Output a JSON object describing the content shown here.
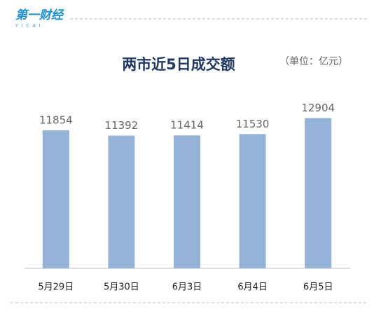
{
  "logo": {
    "name": "第一财经",
    "sub": "YICAI"
  },
  "chart_data": {
    "type": "bar",
    "title": "两市近5日成交额",
    "subtitle": "（单位：亿元）",
    "categories": [
      "5月29日",
      "5月30日",
      "6月3日",
      "6月4日",
      "6月5日"
    ],
    "values": [
      11854,
      11392,
      11414,
      11530,
      12904
    ],
    "color": "#95b3d7",
    "ylim": [
      0,
      16000
    ],
    "grid": false
  }
}
